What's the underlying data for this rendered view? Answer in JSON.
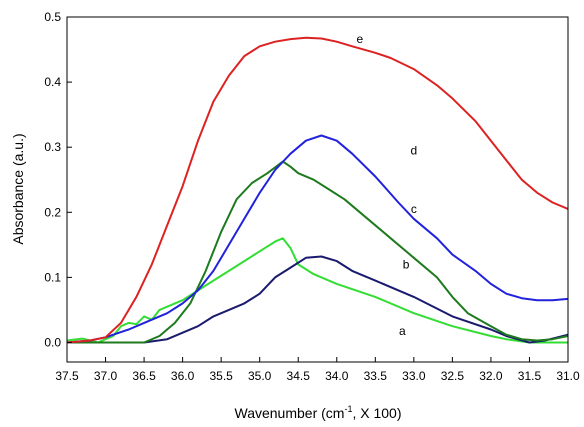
{
  "chart_data": {
    "type": "line",
    "title": "",
    "xlabel": {
      "main": "Wavenumber (cm",
      "sup": "-1",
      "rest": ", X 100)"
    },
    "ylabel": "Absorbance (a.u.)",
    "xlim": [
      37.5,
      31.0
    ],
    "ylim": [
      -0.03,
      0.5
    ],
    "x_ticks": [
      "37.5",
      "37.0",
      "36.5",
      "36.0",
      "35.5",
      "35.0",
      "34.5",
      "34.0",
      "33.5",
      "33.0",
      "32.5",
      "32.0",
      "31.5",
      "31.0"
    ],
    "y_ticks": [
      "0.0",
      "0.1",
      "0.2",
      "0.3",
      "0.4",
      "0.5"
    ],
    "grid": false,
    "series": [
      {
        "name": "a",
        "color": "#33dd33",
        "points": [
          [
            37.5,
            0.003
          ],
          [
            37.3,
            0.006
          ],
          [
            37.1,
            0.0
          ],
          [
            36.9,
            0.01
          ],
          [
            36.8,
            0.025
          ],
          [
            36.7,
            0.03
          ],
          [
            36.6,
            0.028
          ],
          [
            36.5,
            0.04
          ],
          [
            36.4,
            0.035
          ],
          [
            36.3,
            0.05
          ],
          [
            36.2,
            0.055
          ],
          [
            36.0,
            0.065
          ],
          [
            35.8,
            0.08
          ],
          [
            35.6,
            0.095
          ],
          [
            35.4,
            0.11
          ],
          [
            35.2,
            0.125
          ],
          [
            35.0,
            0.14
          ],
          [
            34.8,
            0.155
          ],
          [
            34.7,
            0.16
          ],
          [
            34.6,
            0.145
          ],
          [
            34.5,
            0.12
          ],
          [
            34.3,
            0.105
          ],
          [
            34.0,
            0.09
          ],
          [
            33.5,
            0.07
          ],
          [
            33.0,
            0.045
          ],
          [
            32.5,
            0.025
          ],
          [
            32.0,
            0.01
          ],
          [
            31.8,
            0.005
          ],
          [
            31.5,
            0.0
          ],
          [
            31.2,
            0.0
          ],
          [
            31.0,
            0.0
          ]
        ]
      },
      {
        "name": "b",
        "color": "#1a1a6e",
        "points": [
          [
            37.5,
            0.0
          ],
          [
            37.0,
            0.0
          ],
          [
            36.5,
            0.0
          ],
          [
            36.2,
            0.005
          ],
          [
            36.0,
            0.015
          ],
          [
            35.8,
            0.025
          ],
          [
            35.6,
            0.04
          ],
          [
            35.4,
            0.05
          ],
          [
            35.2,
            0.06
          ],
          [
            35.0,
            0.075
          ],
          [
            34.8,
            0.1
          ],
          [
            34.6,
            0.115
          ],
          [
            34.4,
            0.13
          ],
          [
            34.2,
            0.132
          ],
          [
            34.0,
            0.125
          ],
          [
            33.8,
            0.11
          ],
          [
            33.5,
            0.095
          ],
          [
            33.0,
            0.07
          ],
          [
            32.5,
            0.04
          ],
          [
            32.0,
            0.02
          ],
          [
            31.8,
            0.01
          ],
          [
            31.5,
            0.0
          ],
          [
            31.3,
            0.003
          ],
          [
            31.2,
            0.006
          ],
          [
            31.0,
            0.012
          ]
        ]
      },
      {
        "name": "c",
        "color": "#1e7a1e",
        "points": [
          [
            37.5,
            0.0
          ],
          [
            37.0,
            0.0
          ],
          [
            36.7,
            0.0
          ],
          [
            36.5,
            0.0
          ],
          [
            36.3,
            0.01
          ],
          [
            36.1,
            0.03
          ],
          [
            35.9,
            0.06
          ],
          [
            35.7,
            0.11
          ],
          [
            35.5,
            0.17
          ],
          [
            35.3,
            0.22
          ],
          [
            35.1,
            0.245
          ],
          [
            34.9,
            0.26
          ],
          [
            34.7,
            0.278
          ],
          [
            34.6,
            0.27
          ],
          [
            34.5,
            0.26
          ],
          [
            34.3,
            0.25
          ],
          [
            34.1,
            0.235
          ],
          [
            33.9,
            0.22
          ],
          [
            33.7,
            0.2
          ],
          [
            33.5,
            0.18
          ],
          [
            33.3,
            0.16
          ],
          [
            33.0,
            0.13
          ],
          [
            32.7,
            0.1
          ],
          [
            32.5,
            0.07
          ],
          [
            32.3,
            0.045
          ],
          [
            32.0,
            0.025
          ],
          [
            31.8,
            0.012
          ],
          [
            31.6,
            0.005
          ],
          [
            31.4,
            0.003
          ],
          [
            31.2,
            0.005
          ],
          [
            31.0,
            0.01
          ]
        ]
      },
      {
        "name": "d",
        "color": "#2222dd",
        "points": [
          [
            37.5,
            0.0
          ],
          [
            37.2,
            0.003
          ],
          [
            37.0,
            0.008
          ],
          [
            36.7,
            0.02
          ],
          [
            36.5,
            0.03
          ],
          [
            36.2,
            0.045
          ],
          [
            36.0,
            0.06
          ],
          [
            35.8,
            0.08
          ],
          [
            35.6,
            0.11
          ],
          [
            35.4,
            0.15
          ],
          [
            35.2,
            0.19
          ],
          [
            35.0,
            0.23
          ],
          [
            34.8,
            0.265
          ],
          [
            34.6,
            0.29
          ],
          [
            34.4,
            0.31
          ],
          [
            34.2,
            0.318
          ],
          [
            34.0,
            0.31
          ],
          [
            33.8,
            0.29
          ],
          [
            33.5,
            0.255
          ],
          [
            33.2,
            0.215
          ],
          [
            33.0,
            0.19
          ],
          [
            32.7,
            0.16
          ],
          [
            32.5,
            0.135
          ],
          [
            32.2,
            0.11
          ],
          [
            32.0,
            0.09
          ],
          [
            31.8,
            0.075
          ],
          [
            31.6,
            0.068
          ],
          [
            31.4,
            0.065
          ],
          [
            31.2,
            0.065
          ],
          [
            31.0,
            0.067
          ]
        ]
      },
      {
        "name": "e",
        "color": "#dd2222",
        "points": [
          [
            37.5,
            0.0
          ],
          [
            37.2,
            0.003
          ],
          [
            37.0,
            0.008
          ],
          [
            36.8,
            0.03
          ],
          [
            36.6,
            0.07
          ],
          [
            36.4,
            0.12
          ],
          [
            36.2,
            0.18
          ],
          [
            36.0,
            0.24
          ],
          [
            35.8,
            0.31
          ],
          [
            35.6,
            0.37
          ],
          [
            35.4,
            0.41
          ],
          [
            35.2,
            0.44
          ],
          [
            35.0,
            0.455
          ],
          [
            34.8,
            0.462
          ],
          [
            34.6,
            0.466
          ],
          [
            34.4,
            0.468
          ],
          [
            34.2,
            0.467
          ],
          [
            34.0,
            0.462
          ],
          [
            33.8,
            0.455
          ],
          [
            33.5,
            0.445
          ],
          [
            33.3,
            0.437
          ],
          [
            33.0,
            0.42
          ],
          [
            32.7,
            0.395
          ],
          [
            32.5,
            0.375
          ],
          [
            32.2,
            0.34
          ],
          [
            32.0,
            0.31
          ],
          [
            31.8,
            0.28
          ],
          [
            31.6,
            0.25
          ],
          [
            31.4,
            0.23
          ],
          [
            31.2,
            0.215
          ],
          [
            31.0,
            0.205
          ]
        ]
      }
    ],
    "annotations": [
      {
        "text": "a",
        "x": 33.15,
        "y": 0.018
      },
      {
        "text": "b",
        "x": 33.1,
        "y": 0.12
      },
      {
        "text": "c",
        "x": 33.0,
        "y": 0.205
      },
      {
        "text": "d",
        "x": 33.0,
        "y": 0.295
      },
      {
        "text": "e",
        "x": 33.7,
        "y": 0.466
      }
    ]
  }
}
